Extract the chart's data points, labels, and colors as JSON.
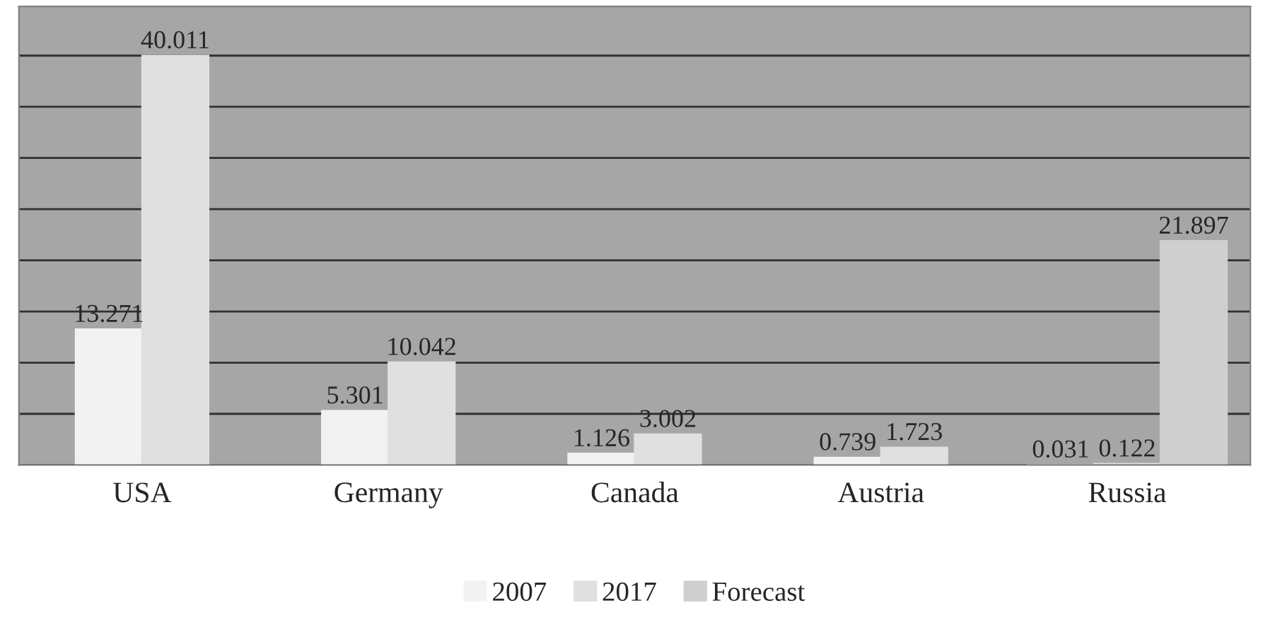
{
  "chart_data": {
    "type": "bar",
    "categories": [
      "USA",
      "Germany",
      "Canada",
      "Austria",
      "Russia"
    ],
    "series": [
      {
        "name": "2007",
        "color": "#f2f2f2",
        "values": [
          13.271,
          5.301,
          1.126,
          0.739,
          0.031
        ]
      },
      {
        "name": "2017",
        "color": "#e0e0e0",
        "values": [
          40.011,
          10.042,
          3.002,
          1.723,
          0.122
        ]
      },
      {
        "name": "Forecast",
        "color": "#cfcfcf",
        "values": [
          null,
          null,
          null,
          null,
          21.897
        ]
      }
    ],
    "data_labels": true,
    "grid": "y",
    "legend": "bottom",
    "tick_labels": "x"
  }
}
